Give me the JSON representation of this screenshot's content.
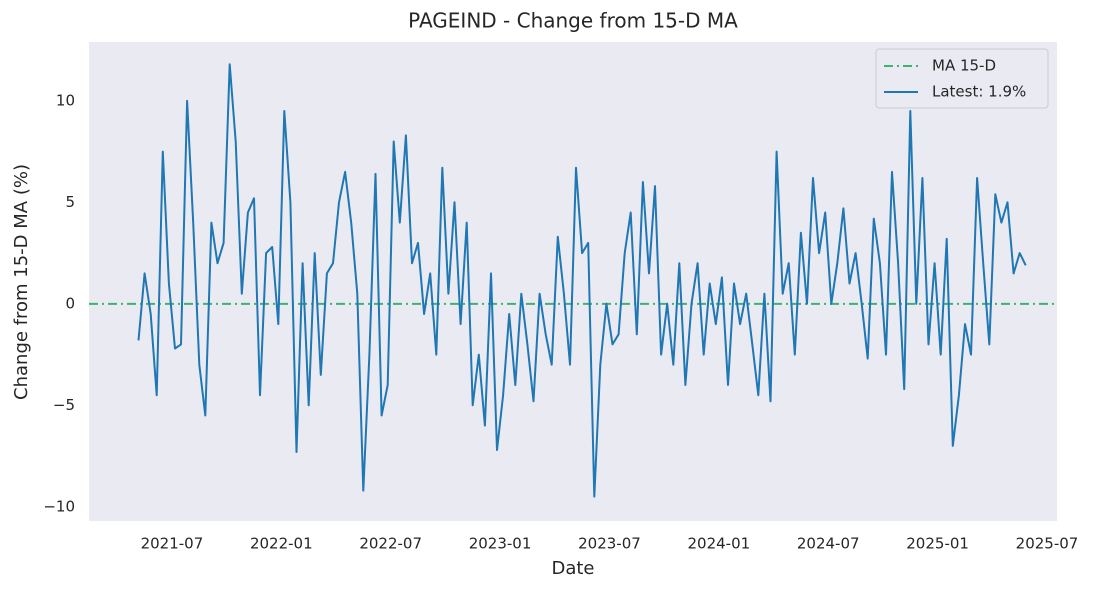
{
  "chart_data": {
    "type": "line",
    "title": "PAGEIND - Change from 15-D MA",
    "x_label": "Date",
    "y_label": "Change from 15-D MA (%)",
    "x": [
      "2021-05",
      "2021-05",
      "2021-05",
      "2021-06",
      "2021-06",
      "2021-06",
      "2021-07",
      "2021-07",
      "2021-07",
      "2021-08",
      "2021-08",
      "2021-08",
      "2021-09",
      "2021-09",
      "2021-09",
      "2021-10",
      "2021-10",
      "2021-10",
      "2021-11",
      "2021-11",
      "2021-11",
      "2021-12",
      "2021-12",
      "2021-12",
      "2022-01",
      "2022-01",
      "2022-01",
      "2022-02",
      "2022-02",
      "2022-02",
      "2022-03",
      "2022-03",
      "2022-03",
      "2022-04",
      "2022-04",
      "2022-04",
      "2022-05",
      "2022-05",
      "2022-05",
      "2022-06",
      "2022-06",
      "2022-06",
      "2022-07",
      "2022-07",
      "2022-07",
      "2022-08",
      "2022-08",
      "2022-08",
      "2022-09",
      "2022-09",
      "2022-09",
      "2022-10",
      "2022-10",
      "2022-10",
      "2022-11",
      "2022-11",
      "2022-11",
      "2022-12",
      "2022-12",
      "2022-12",
      "2023-01",
      "2023-01",
      "2023-01",
      "2023-02",
      "2023-02",
      "2023-02",
      "2023-03",
      "2023-03",
      "2023-03",
      "2023-04",
      "2023-04",
      "2023-04",
      "2023-05",
      "2023-05",
      "2023-05",
      "2023-06",
      "2023-06",
      "2023-06",
      "2023-07",
      "2023-07",
      "2023-07",
      "2023-08",
      "2023-08",
      "2023-08",
      "2023-09",
      "2023-09",
      "2023-09",
      "2023-10",
      "2023-10",
      "2023-10",
      "2023-11",
      "2023-11",
      "2023-11",
      "2023-12",
      "2023-12",
      "2023-12",
      "2024-01",
      "2024-01",
      "2024-01",
      "2024-02",
      "2024-02",
      "2024-02",
      "2024-03",
      "2024-03",
      "2024-03",
      "2024-04",
      "2024-04",
      "2024-04",
      "2024-05",
      "2024-05",
      "2024-05",
      "2024-06",
      "2024-06",
      "2024-06",
      "2024-07",
      "2024-07",
      "2024-07",
      "2024-08",
      "2024-08",
      "2024-08",
      "2024-09",
      "2024-09",
      "2024-09",
      "2024-10",
      "2024-10",
      "2024-10",
      "2024-11",
      "2024-11",
      "2024-11",
      "2024-12",
      "2024-12",
      "2024-12",
      "2025-01",
      "2025-01",
      "2025-01",
      "2025-02",
      "2025-02",
      "2025-02",
      "2025-03",
      "2025-03",
      "2025-03",
      "2025-04",
      "2025-04",
      "2025-04",
      "2025-05",
      "2025-05",
      "2025-05"
    ],
    "series": [
      {
        "name": "Latest: 1.9%",
        "color": "#1f77b4",
        "values": [
          -1.8,
          1.5,
          -0.5,
          -4.5,
          7.5,
          1.0,
          -2.2,
          -2.0,
          10.0,
          4.0,
          -3.0,
          -5.5,
          4.0,
          2.0,
          3.0,
          11.8,
          8.0,
          0.5,
          4.5,
          5.2,
          -4.5,
          2.5,
          2.8,
          -1.0,
          9.5,
          5.0,
          -7.3,
          2.0,
          -5.0,
          2.5,
          -3.5,
          1.5,
          2.0,
          5.0,
          6.5,
          4.0,
          0.5,
          -9.2,
          -2.5,
          6.4,
          -5.5,
          -4.0,
          8.0,
          4.0,
          8.3,
          2.0,
          3.0,
          -0.5,
          1.5,
          -2.5,
          6.7,
          0.5,
          5.0,
          -1.0,
          4.0,
          -5.0,
          -2.5,
          -6.0,
          1.5,
          -7.2,
          -4.5,
          -0.5,
          -4.0,
          0.5,
          -2.0,
          -4.8,
          0.5,
          -1.5,
          -3.0,
          3.3,
          0.5,
          -3.0,
          6.7,
          2.5,
          3.0,
          -9.5,
          -3.0,
          0.0,
          -2.0,
          -1.5,
          2.5,
          4.5,
          -1.5,
          6.0,
          1.5,
          5.8,
          -2.5,
          0.0,
          -3.0,
          2.0,
          -4.0,
          0.0,
          2.0,
          -2.5,
          1.0,
          -1.0,
          1.3,
          -4.0,
          1.0,
          -1.0,
          0.5,
          -2.0,
          -4.5,
          0.5,
          -4.8,
          7.5,
          0.5,
          2.0,
          -2.5,
          3.5,
          0.0,
          6.2,
          2.5,
          4.5,
          0.0,
          2.0,
          4.7,
          1.0,
          2.5,
          0.0,
          -2.7,
          4.2,
          2.0,
          -2.5,
          6.5,
          2.0,
          -4.2,
          9.5,
          0.0,
          6.2,
          -2.0,
          2.0,
          -2.5,
          3.2,
          -7.0,
          -4.5,
          -1.0,
          -2.5,
          6.2,
          2.0,
          -2.0,
          5.4,
          4.0,
          5.0,
          1.5,
          2.5,
          1.9
        ]
      }
    ],
    "reference_line": {
      "name": "MA 15-D",
      "value": 0,
      "color": "#3cb371"
    },
    "xlim": [
      "2021-03",
      "2025-07"
    ],
    "xticks": [
      "2021-07",
      "2022-01",
      "2022-07",
      "2023-01",
      "2023-07",
      "2024-01",
      "2024-07",
      "2025-01",
      "2025-07"
    ],
    "ylim": [
      -10.7,
      12.9
    ],
    "yticks": [
      {
        "value": -10,
        "label": "−10"
      },
      {
        "value": -5,
        "label": "−5"
      },
      0,
      5,
      10
    ],
    "grid": false,
    "legend": "upper right"
  }
}
